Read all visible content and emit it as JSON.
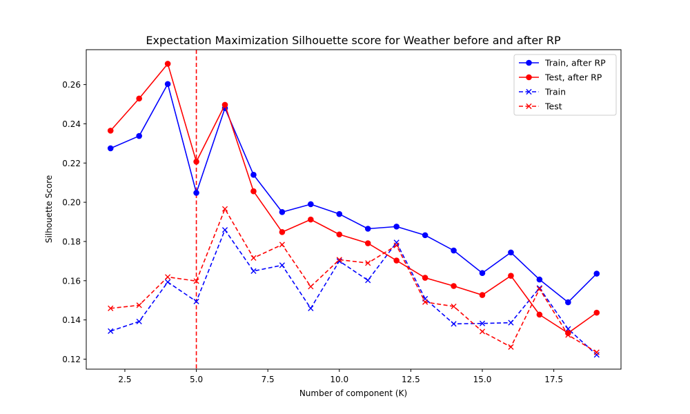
{
  "chart_data": {
    "type": "line",
    "title": "Expectation Maximization Silhouette score for Weather before and after RP",
    "xlabel": "Number of component (K)",
    "ylabel": "Silhouette Score",
    "xlim": [
      1.15,
      19.85
    ],
    "ylim": [
      0.1149,
      0.2778
    ],
    "xticks": [
      2.5,
      5.0,
      7.5,
      10.0,
      12.5,
      15.0,
      17.5
    ],
    "xtick_labels": [
      "2.5",
      "5.0",
      "7.5",
      "10.0",
      "12.5",
      "15.0",
      "17.5"
    ],
    "yticks": [
      0.12,
      0.14,
      0.16,
      0.18,
      0.2,
      0.22,
      0.24,
      0.26
    ],
    "ytick_labels": [
      "0.12",
      "0.14",
      "0.16",
      "0.18",
      "0.20",
      "0.22",
      "0.24",
      "0.26"
    ],
    "grid": false,
    "legend_position": "top-right",
    "vline": {
      "x": 5,
      "color": "#ff0000",
      "style": "dashed"
    },
    "x": [
      2,
      3,
      4,
      5,
      6,
      7,
      8,
      9,
      10,
      11,
      12,
      13,
      14,
      15,
      16,
      17,
      18,
      19
    ],
    "series": [
      {
        "name": "Train, after RP",
        "color": "#0000ff",
        "linestyle": "solid",
        "marker": "circle",
        "values": [
          0.2275,
          0.2338,
          0.2603,
          0.2048,
          0.248,
          0.214,
          0.195,
          0.199,
          0.194,
          0.1865,
          0.1876,
          0.1832,
          0.1754,
          0.1639,
          0.1744,
          0.1606,
          0.149,
          0.1636
        ]
      },
      {
        "name": "Test, after RP",
        "color": "#ff0000",
        "linestyle": "solid",
        "marker": "circle",
        "values": [
          0.2365,
          0.2529,
          0.2706,
          0.2207,
          0.2497,
          0.2056,
          0.1848,
          0.1912,
          0.1836,
          0.1791,
          0.1703,
          0.1615,
          0.1573,
          0.1527,
          0.1625,
          0.1427,
          0.1333,
          0.1437
        ]
      },
      {
        "name": "Train",
        "color": "#0000ff",
        "linestyle": "dashed",
        "marker": "x",
        "values": [
          0.1343,
          0.1392,
          0.1593,
          0.1494,
          0.1859,
          0.1649,
          0.1679,
          0.1459,
          0.17,
          0.1602,
          0.1795,
          0.1508,
          0.138,
          0.1382,
          0.1386,
          0.1563,
          0.1354,
          0.1222
        ]
      },
      {
        "name": "Test",
        "color": "#ff0000",
        "linestyle": "dashed",
        "marker": "x",
        "values": [
          0.1459,
          0.1475,
          0.1619,
          0.1598,
          0.1966,
          0.1716,
          0.1784,
          0.157,
          0.1707,
          0.169,
          0.178,
          0.1491,
          0.1469,
          0.1341,
          0.1262,
          0.1558,
          0.1323,
          0.1235
        ]
      }
    ]
  }
}
